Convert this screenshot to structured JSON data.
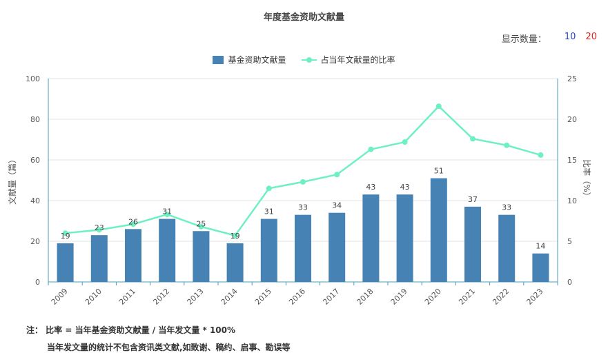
{
  "title": "年度基金资助文献量",
  "display_count": {
    "label": "显示数量：",
    "options": [
      "10",
      "20"
    ],
    "colors": [
      "#1e3fcf",
      "#e02020"
    ]
  },
  "legend": {
    "bar_label": "基金资助文献量",
    "line_label": "占当年文献量的比率"
  },
  "notes": {
    "line1": "注： 比率 = 当年基金资助文献量 / 当年发文量 * 100%",
    "line2": "当年发文量的统计不包含资讯类文献,如致谢、稿约、启事、勘误等"
  },
  "chart_data": {
    "type": "bar",
    "categories": [
      "2009",
      "2010",
      "2011",
      "2012",
      "2013",
      "2014",
      "2015",
      "2016",
      "2017",
      "2018",
      "2019",
      "2020",
      "2021",
      "2022",
      "2023"
    ],
    "series": [
      {
        "name": "基金资助文献量",
        "type": "bar",
        "axis": "left",
        "values": [
          19,
          23,
          26,
          31,
          25,
          19,
          31,
          33,
          34,
          43,
          43,
          51,
          37,
          33,
          14
        ],
        "color": "#4682b4"
      },
      {
        "name": "占当年文献量的比率",
        "type": "line",
        "axis": "right",
        "values": [
          6.0,
          6.4,
          7.1,
          8.3,
          6.8,
          5.7,
          11.5,
          12.3,
          13.2,
          16.3,
          17.2,
          21.6,
          17.6,
          16.8,
          15.6
        ],
        "color": "#6ff0c4"
      }
    ],
    "ylabel": "文献量（篇）",
    "y2label": "比率（%）",
    "ylim": [
      0,
      100
    ],
    "y2lim": [
      0,
      25
    ],
    "yticks": [
      0,
      20,
      40,
      60,
      80,
      100
    ],
    "y2ticks": [
      0,
      5,
      10,
      15,
      20,
      25
    ],
    "grid": true,
    "legend_position": "top-center"
  }
}
